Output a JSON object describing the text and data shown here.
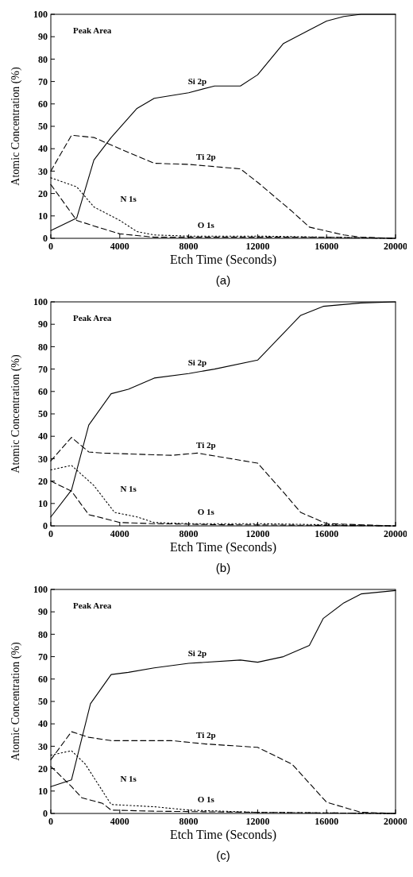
{
  "chart_data": [
    {
      "type": "line",
      "title": "(a)",
      "xlabel": "Etch Time (Seconds)",
      "ylabel": "Atomic Concentration (%)",
      "annotations": [
        "Peak Area"
      ],
      "xlim": [
        0,
        20000
      ],
      "xticks": [
        0,
        4000,
        8000,
        12000,
        16000,
        20000
      ],
      "ylim": [
        0,
        100
      ],
      "yticks": [
        0,
        10,
        20,
        30,
        40,
        50,
        60,
        70,
        80,
        90,
        100
      ],
      "grid": false,
      "marker": "none",
      "series": [
        {
          "name": "Si 2p",
          "color": "#000000",
          "line_style": "solid",
          "x": [
            0,
            1500,
            2500,
            3500,
            5000,
            6000,
            8000,
            9500,
            11000,
            12000,
            13500,
            15000,
            16000,
            17000,
            18000,
            20000
          ],
          "values": [
            3.5,
            9,
            35,
            45,
            58,
            62.5,
            65,
            68,
            68,
            73,
            87,
            93,
            97,
            99,
            100,
            100
          ]
        },
        {
          "name": "Ti 2p",
          "color": "#000000",
          "line_style": "dashed",
          "x": [
            0,
            1200,
            2500,
            4000,
            6000,
            8000,
            11000,
            12000,
            14000,
            15000,
            17000,
            18000,
            20000
          ],
          "values": [
            30,
            46,
            45,
            40,
            33.5,
            33,
            31,
            25,
            12,
            5,
            1.5,
            0.5,
            0
          ]
        },
        {
          "name": "N 1s",
          "color": "#000000",
          "line_style": "dotted",
          "x": [
            0,
            1500,
            2500,
            4000,
            5000,
            6000,
            8000,
            12000,
            16000,
            20000
          ],
          "values": [
            27,
            23,
            14,
            8,
            3,
            1.5,
            1,
            1,
            0.5,
            0
          ]
        },
        {
          "name": "O 1s",
          "color": "#000000",
          "line_style": "dashed",
          "x": [
            0,
            1500,
            2500,
            4000,
            6000,
            8000,
            12000,
            16000,
            20000
          ],
          "values": [
            24,
            8,
            5.5,
            2,
            0.5,
            0.5,
            0.5,
            0.5,
            0
          ]
        }
      ]
    },
    {
      "type": "line",
      "title": "(b)",
      "xlabel": "Etch Time (Seconds)",
      "ylabel": "Atomic Concentration (%)",
      "annotations": [
        "Peak Area"
      ],
      "xlim": [
        0,
        20000
      ],
      "xticks": [
        0,
        4000,
        8000,
        12000,
        16000,
        20000
      ],
      "ylim": [
        0,
        100
      ],
      "yticks": [
        0,
        10,
        20,
        30,
        40,
        50,
        60,
        70,
        80,
        90,
        100
      ],
      "grid": false,
      "marker": "none",
      "series": [
        {
          "name": "Si 2p",
          "color": "#000000",
          "line_style": "solid",
          "x": [
            0,
            1200,
            2200,
            3500,
            4500,
            6000,
            8000,
            9500,
            12000,
            14500,
            15800,
            18000,
            20000
          ],
          "values": [
            4,
            16,
            45,
            59,
            61,
            66,
            68,
            70,
            74,
            94,
            98,
            99.5,
            100
          ]
        },
        {
          "name": "Ti 2p",
          "color": "#000000",
          "line_style": "dashed",
          "x": [
            0,
            1200,
            2200,
            3000,
            7000,
            8500,
            12000,
            13500,
            14500,
            16000,
            20000
          ],
          "values": [
            29,
            39.5,
            33,
            32.5,
            31.5,
            32.5,
            28,
            15,
            6,
            1,
            0
          ]
        },
        {
          "name": "N 1s",
          "color": "#000000",
          "line_style": "dotted",
          "x": [
            0,
            1200,
            2500,
            3700,
            5000,
            6000,
            8000,
            12000,
            16000,
            20000
          ],
          "values": [
            25,
            27,
            18,
            6,
            4,
            1.5,
            1,
            1,
            0.5,
            0
          ]
        },
        {
          "name": "O 1s",
          "color": "#000000",
          "line_style": "dashed",
          "x": [
            0,
            1200,
            2200,
            3000,
            4000,
            6000,
            10000,
            20000
          ],
          "values": [
            20,
            15.5,
            5,
            3.5,
            1.5,
            1,
            0.5,
            0
          ]
        }
      ]
    },
    {
      "type": "line",
      "title": "(c)",
      "xlabel": "Etch Time (Seconds)",
      "ylabel": "Atomic Concentration (%)",
      "annotations": [
        "Peak Area"
      ],
      "xlim": [
        0,
        20000
      ],
      "xticks": [
        0,
        4000,
        8000,
        12000,
        16000,
        20000
      ],
      "ylim": [
        0,
        100
      ],
      "yticks": [
        0,
        10,
        20,
        30,
        40,
        50,
        60,
        70,
        80,
        90,
        100
      ],
      "grid": false,
      "marker": "none",
      "series": [
        {
          "name": "Si 2p",
          "color": "#000000",
          "line_style": "solid",
          "x": [
            0,
            1200,
            2300,
            3500,
            4500,
            6000,
            8000,
            11000,
            12000,
            13500,
            15000,
            15800,
            17000,
            18000,
            20000
          ],
          "values": [
            12,
            15,
            49,
            62,
            63,
            65,
            67,
            68.5,
            67.5,
            70,
            75,
            87,
            94,
            98,
            99.5
          ]
        },
        {
          "name": "Ti 2p",
          "color": "#000000",
          "line_style": "dashed",
          "x": [
            0,
            1200,
            2200,
            3500,
            7000,
            9000,
            12000,
            14000,
            16000,
            18000,
            20000
          ],
          "values": [
            24,
            36.5,
            34,
            32.5,
            32.5,
            31,
            29.5,
            22,
            5,
            0.5,
            0
          ]
        },
        {
          "name": "N 1s",
          "color": "#000000",
          "line_style": "dotted",
          "x": [
            0,
            1200,
            2000,
            3500,
            6000,
            8000,
            12000,
            20000
          ],
          "values": [
            26,
            28,
            22,
            4,
            3,
            1.5,
            0.5,
            0
          ]
        },
        {
          "name": "O 1s",
          "color": "#000000",
          "line_style": "dashed",
          "x": [
            0,
            1200,
            1800,
            3000,
            3500,
            6000,
            12000,
            20000
          ],
          "values": [
            21,
            12,
            7,
            4.5,
            1.5,
            1,
            0.5,
            0
          ]
        }
      ]
    }
  ]
}
